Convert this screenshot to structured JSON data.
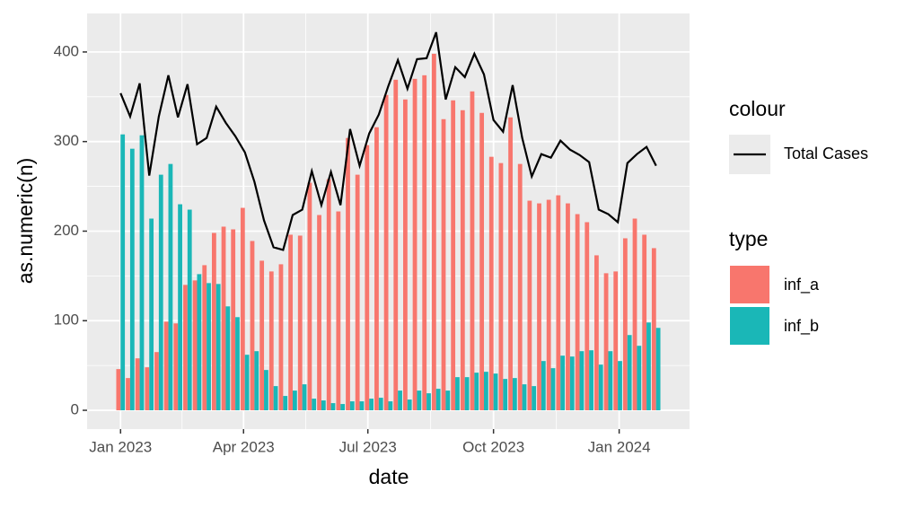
{
  "chart_data": {
    "type": "bar_line",
    "x_label": "date",
    "y_label": "as.numeric(n)",
    "x": [
      0,
      1,
      2,
      3,
      4,
      5,
      6,
      7,
      8,
      9,
      10,
      11,
      12,
      13,
      14,
      15,
      16,
      17,
      18,
      19,
      20,
      21,
      22,
      23,
      24,
      25,
      26,
      27,
      28,
      29,
      30,
      31,
      32,
      33,
      34,
      35,
      36,
      37,
      38,
      39,
      40,
      41,
      42,
      43,
      44,
      45,
      46,
      47,
      48,
      49,
      50,
      51,
      52,
      53,
      54,
      55,
      56
    ],
    "xlim": [
      -3.5,
      59.5
    ],
    "xticks": [
      {
        "value": 0,
        "label": "Jan 2023"
      },
      {
        "value": 12.86,
        "label": "Apr 2023"
      },
      {
        "value": 25.86,
        "label": "Jul 2023"
      },
      {
        "value": 39,
        "label": "Oct 2023"
      },
      {
        "value": 52.14,
        "label": "Jan 2024"
      }
    ],
    "ylim": [
      -21,
      443
    ],
    "yticks": [
      0,
      100,
      200,
      300,
      400
    ],
    "grid": true,
    "colour_legend_title": "colour",
    "fill_legend_title": "type",
    "series": [
      {
        "name": "Total Cases",
        "color": "#000000",
        "mark": "line",
        "values": [
          354,
          328,
          365,
          262,
          328,
          374,
          327,
          364,
          297,
          304,
          339,
          321,
          306,
          288,
          255,
          212,
          182,
          179,
          218,
          224,
          267,
          229,
          266,
          229,
          314,
          273,
          309,
          330,
          362,
          391,
          359,
          392,
          393,
          422,
          347,
          383,
          372,
          398,
          375,
          324,
          311,
          363,
          304,
          261,
          286,
          282,
          301,
          291,
          285,
          277,
          224,
          219,
          210,
          276,
          286,
          294,
          273
        ]
      },
      {
        "name": "inf_a",
        "color": "#f8766d",
        "mark": "bar",
        "values": [
          46,
          36,
          58,
          48,
          65,
          99,
          97,
          140,
          145,
          162,
          198,
          205,
          202,
          226,
          189,
          167,
          155,
          163,
          196,
          195,
          254,
          218,
          258,
          222,
          304,
          263,
          296,
          316,
          352,
          369,
          347,
          370,
          374,
          398,
          325,
          346,
          335,
          356,
          332,
          283,
          276,
          327,
          275,
          234,
          231,
          235,
          240,
          231,
          219,
          210,
          173,
          153,
          155,
          192,
          214,
          196,
          181
        ]
      },
      {
        "name": "inf_b",
        "color": "#1ab7b7",
        "mark": "bar",
        "values": [
          308,
          292,
          307,
          214,
          263,
          275,
          230,
          224,
          152,
          142,
          141,
          116,
          104,
          62,
          66,
          45,
          27,
          16,
          22,
          29,
          13,
          11,
          8,
          7,
          10,
          10,
          13,
          14,
          10,
          22,
          12,
          22,
          19,
          24,
          22,
          37,
          37,
          42,
          43,
          41,
          35,
          36,
          29,
          27,
          55,
          47,
          61,
          60,
          66,
          67,
          51,
          66,
          55,
          84,
          72,
          98,
          92
        ]
      }
    ]
  }
}
